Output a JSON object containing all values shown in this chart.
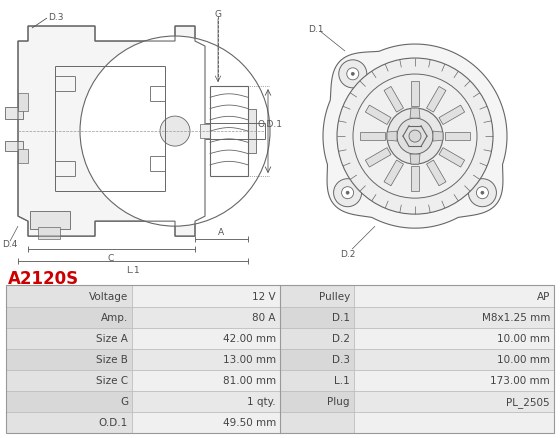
{
  "title": "A2120S",
  "title_color": "#cc0000",
  "table_rows": [
    [
      "Voltage",
      "12 V",
      "Pulley",
      "AP"
    ],
    [
      "Amp.",
      "80 A",
      "D.1",
      "M8x1.25 mm"
    ],
    [
      "Size A",
      "42.00 mm",
      "D.2",
      "10.00 mm"
    ],
    [
      "Size B",
      "13.00 mm",
      "D.3",
      "10.00 mm"
    ],
    [
      "Size C",
      "81.00 mm",
      "L.1",
      "173.00 mm"
    ],
    [
      "G",
      "1 qty.",
      "Plug",
      "PL_2505"
    ],
    [
      "O.D.1",
      "49.50 mm",
      "",
      ""
    ]
  ],
  "bg_color": "#ffffff",
  "label_col_bg_odd": "#e2e2e2",
  "label_col_bg_even": "#d8d8d8",
  "value_col_bg_odd": "#f0f0f0",
  "value_col_bg_even": "#e8e8e8",
  "border_color": "#bbbbbb",
  "text_color": "#444444",
  "font_size": 7.5,
  "line_color": "#666666",
  "dim_color": "#555555"
}
